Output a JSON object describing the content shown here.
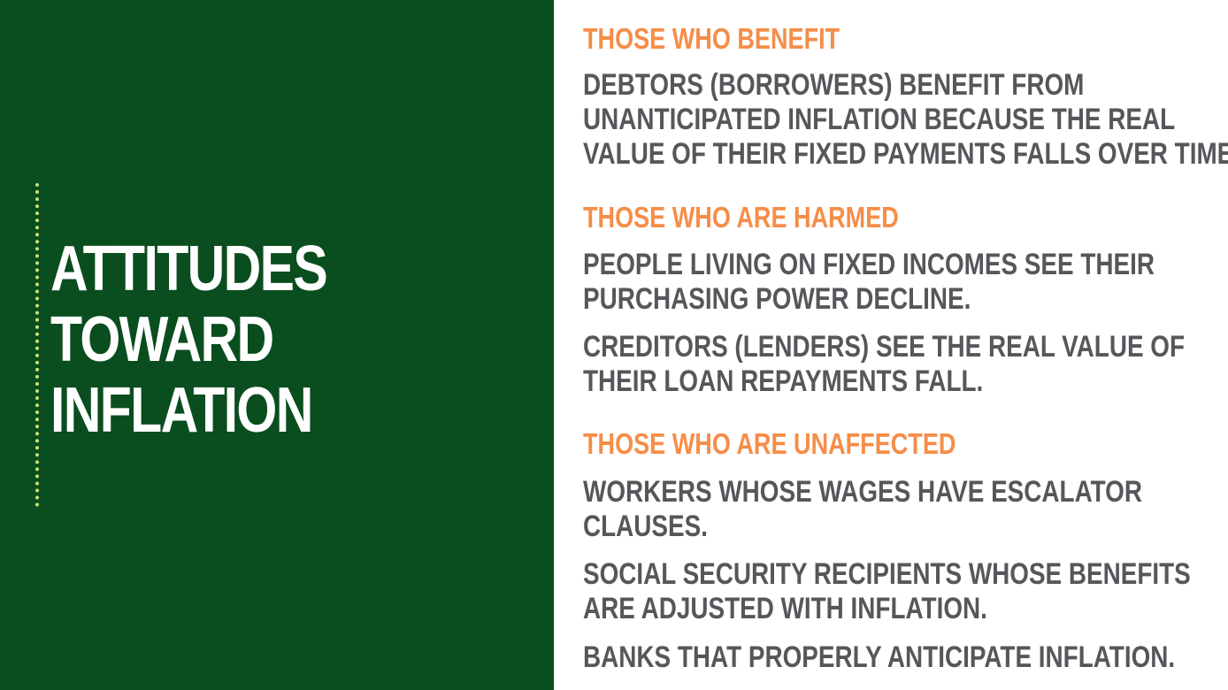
{
  "title": {
    "lines": [
      "ATTITUDES",
      "TOWARD",
      "INFLATION"
    ]
  },
  "sections": {
    "benefit": {
      "heading": "THOSE WHO BENEFIT",
      "items": [
        {
          "lines": [
            "DEBTORS (BORROWERS) BENEFIT FROM",
            "UNANTICIPATED INFLATION BECAUSE THE REAL",
            "VALUE OF THEIR FIXED PAYMENTS FALLS OVER TIME."
          ]
        }
      ]
    },
    "harmed": {
      "heading": "THOSE WHO ARE HARMED",
      "items": [
        {
          "lines": [
            "PEOPLE LIVING ON FIXED INCOMES SEE THEIR",
            "PURCHASING POWER DECLINE."
          ]
        },
        {
          "lines": [
            "CREDITORS (LENDERS) SEE THE REAL VALUE OF",
            "THEIR LOAN REPAYMENTS FALL."
          ]
        }
      ]
    },
    "unaffected": {
      "heading": "THOSE WHO ARE UNAFFECTED",
      "items": [
        {
          "lines": [
            "WORKERS WHOSE WAGES HAVE ESCALATOR",
            "CLAUSES."
          ]
        },
        {
          "lines": [
            "SOCIAL SECURITY RECIPIENTS WHOSE BENEFITS",
            "ARE ADJUSTED WITH INFLATION."
          ]
        },
        {
          "lines": [
            "BANKS THAT PROPERLY ANTICIPATE INFLATION."
          ]
        }
      ]
    }
  },
  "colors": {
    "left_panel_background": "#0a4d1e",
    "accent_line": "#c9e27a",
    "title_text": "#ffffff",
    "heading_text": "#f68d48",
    "body_text": "#55575b",
    "right_panel_background": "#ffffff"
  }
}
